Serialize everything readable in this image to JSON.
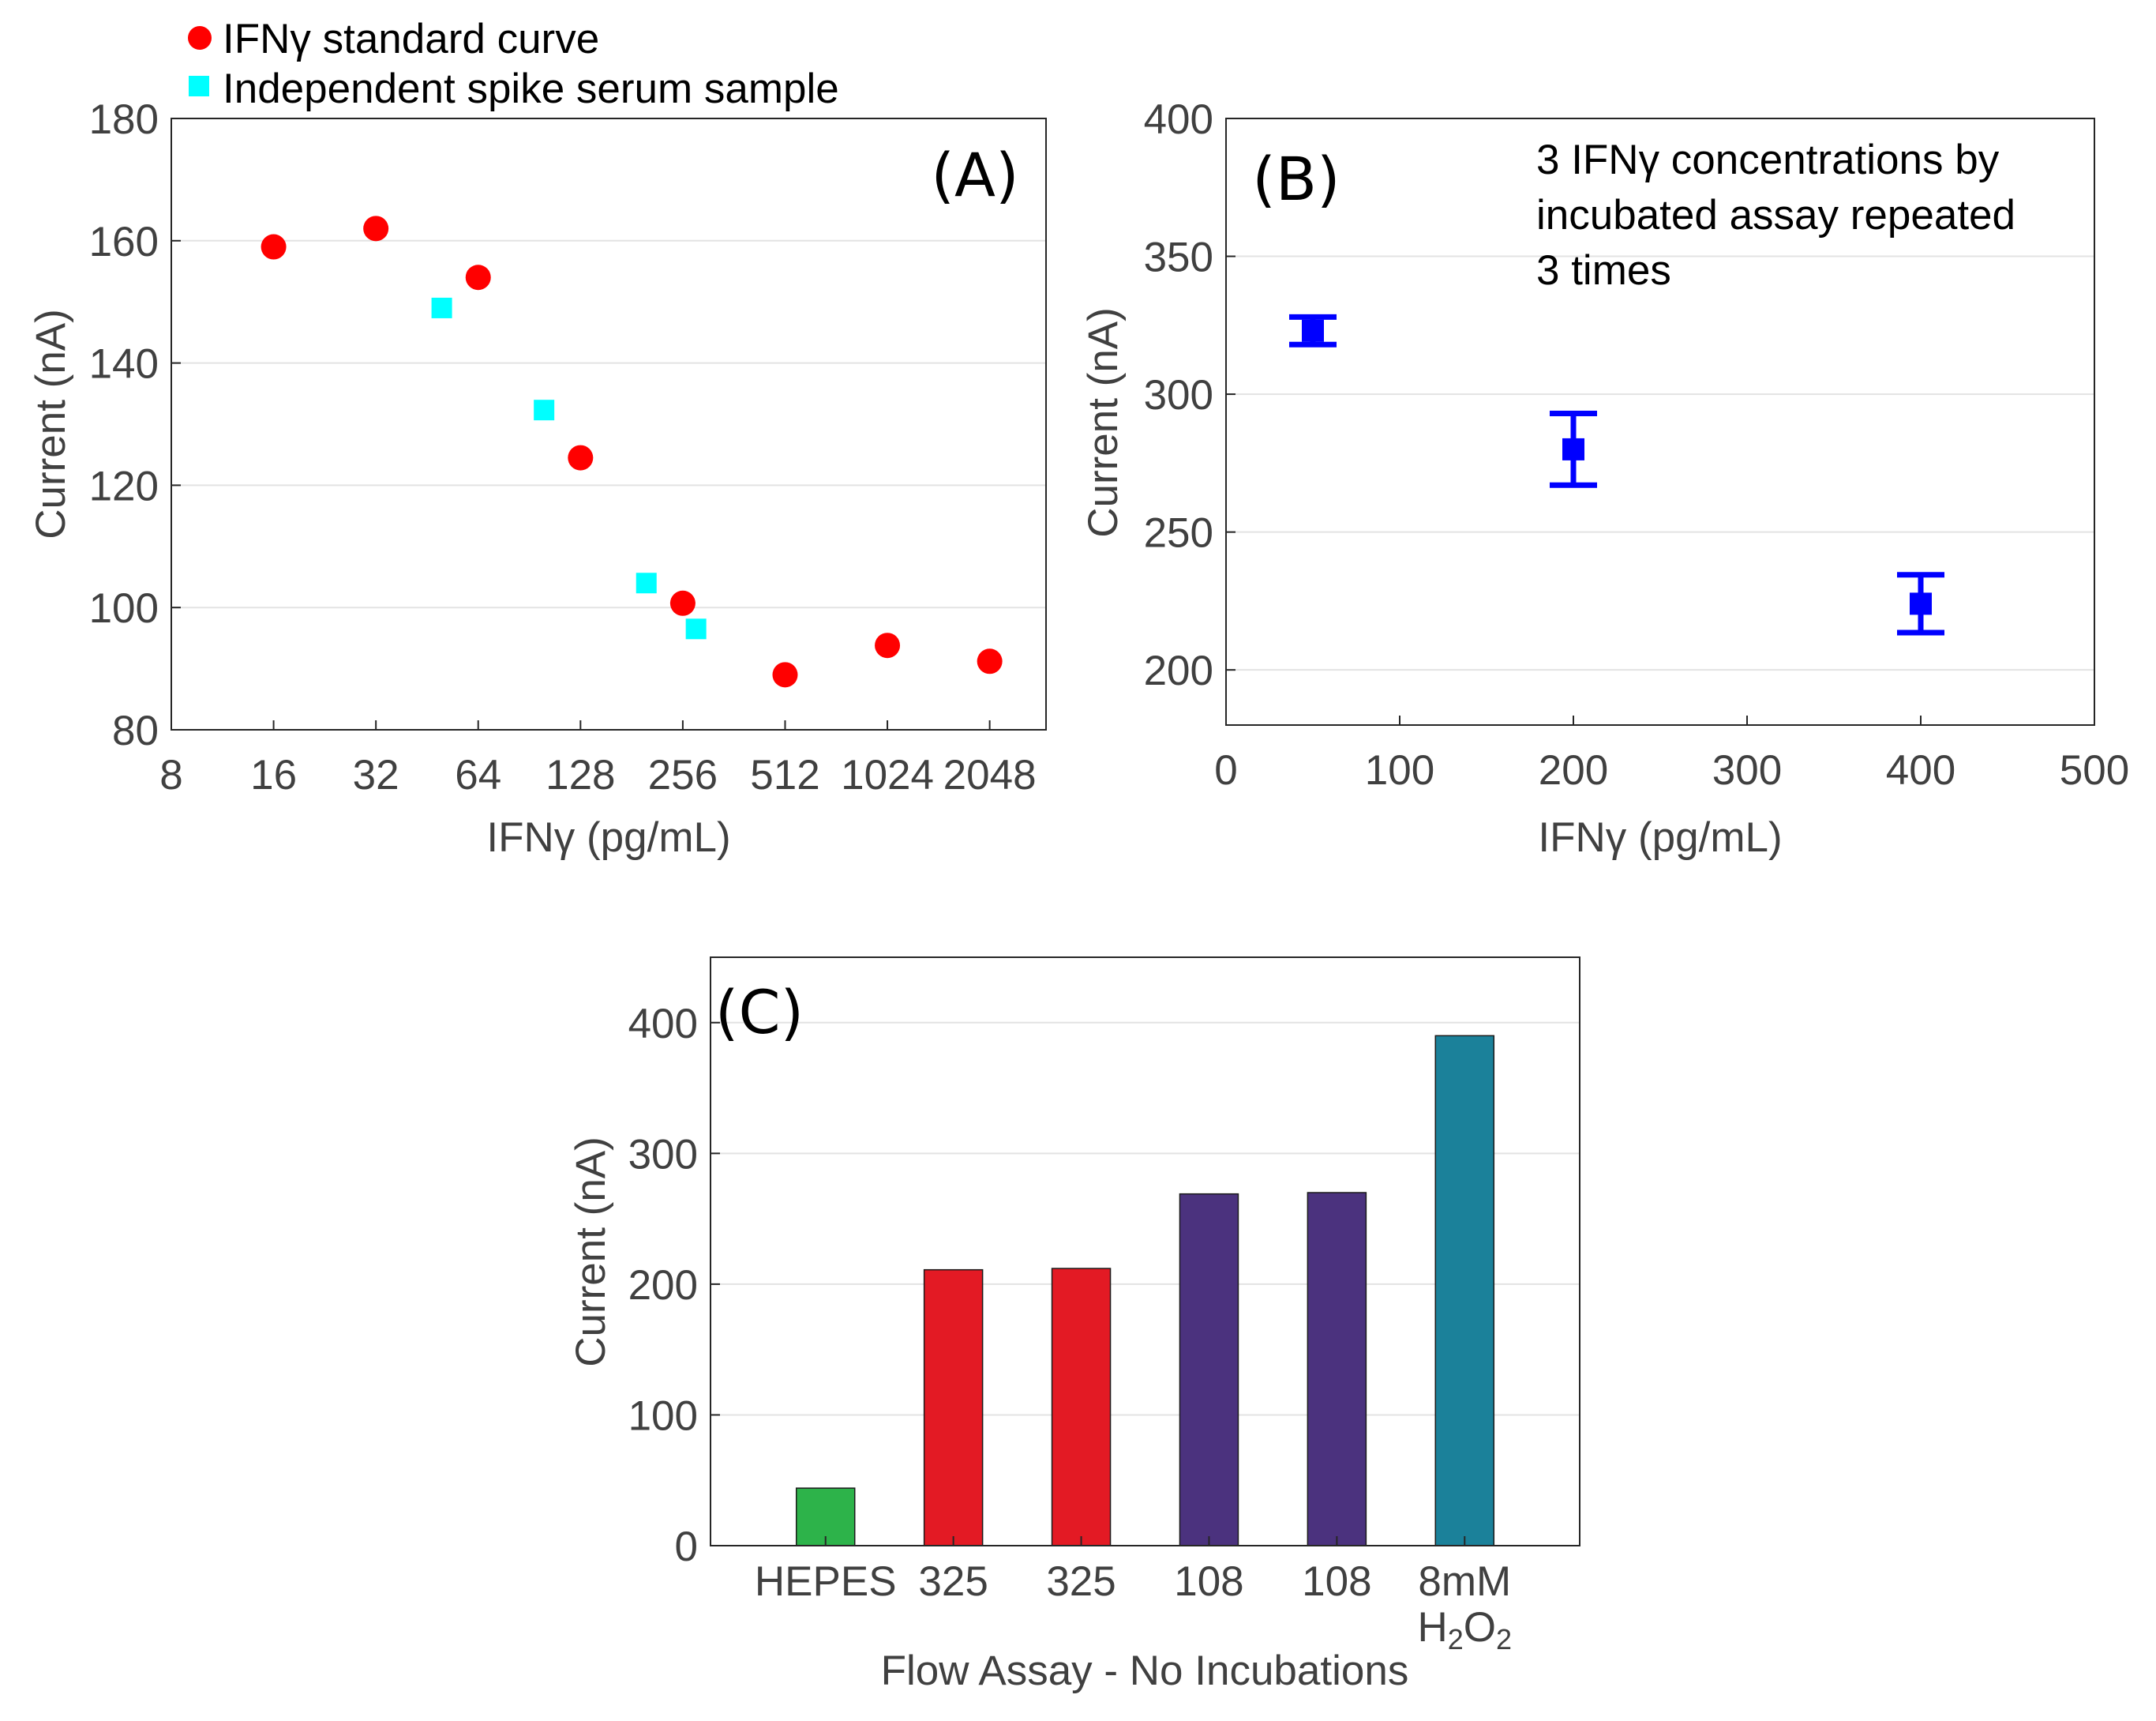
{
  "colors": {
    "standard": "#ff0000",
    "spike": "#00ffff",
    "errorbar": "#0000ff",
    "axis_text": "#404040",
    "grid": "#e3e3e3",
    "bar_hepes": "#2db34a",
    "bar_325": "#e31a24",
    "bar_108": "#4b327e",
    "bar_h2o2": "#1b819a"
  },
  "chart_data": [
    {
      "panel": "(A)",
      "type": "scatter",
      "x_scale": "log2",
      "xlabel": "IFNγ (pg/mL)",
      "ylabel": "Current (nA)",
      "xlim": [
        8,
        3000
      ],
      "ylim": [
        80,
        180
      ],
      "xticks": [
        "8",
        "16",
        "32",
        "64",
        "128",
        "256",
        "512",
        "1024",
        "2048"
      ],
      "yticks": [
        "80",
        "100",
        "120",
        "140",
        "160",
        "180"
      ],
      "grid": "horizontal",
      "legend": "top-left, above plot",
      "series": [
        {
          "name": "IFNγ standard curve",
          "marker": "circle",
          "x": [
            16,
            32,
            64,
            128,
            256,
            512,
            1024,
            2048
          ],
          "y": [
            159,
            162,
            154,
            124.5,
            100.7,
            89,
            93.8,
            91.2
          ]
        },
        {
          "name": "Independent spike serum sample",
          "marker": "square",
          "x": [
            50,
            100,
            200,
            280
          ],
          "y": [
            149,
            132.3,
            104,
            96.5
          ]
        }
      ]
    },
    {
      "panel": "(B)",
      "type": "scatter",
      "xlabel": "IFNγ (pg/mL)",
      "ylabel": "Current (nA)",
      "xlim": [
        0,
        500
      ],
      "ylim": [
        180,
        400
      ],
      "xticks": [
        "0",
        "100",
        "200",
        "300",
        "400",
        "500"
      ],
      "yticks": [
        "200",
        "250",
        "300",
        "350",
        "400"
      ],
      "grid": "horizontal",
      "annotation": [
        "3 IFNγ concentrations by",
        "incubated assay repeated",
        "3 times"
      ],
      "series": [
        {
          "marker": "square-with-errorbars",
          "x": [
            50,
            200,
            400
          ],
          "y": [
            323,
            280,
            224
          ],
          "error": [
            5,
            13,
            10.5
          ]
        }
      ]
    },
    {
      "panel": "(C)",
      "type": "bar",
      "xlabel": "Flow Assay - No Incubations",
      "ylabel": "Current (nA)",
      "ylim": [
        0,
        450
      ],
      "yticks": [
        "0",
        "100",
        "200",
        "300",
        "400"
      ],
      "grid": "horizontal",
      "categories": [
        "HEPES",
        "325",
        "325",
        "108",
        "108",
        "8mM"
      ],
      "h2o2_label": {
        "h": "H",
        "sub1": "2",
        "o": "O",
        "sub2": "2"
      },
      "values": [
        44,
        211,
        212,
        269,
        270,
        390
      ]
    }
  ]
}
